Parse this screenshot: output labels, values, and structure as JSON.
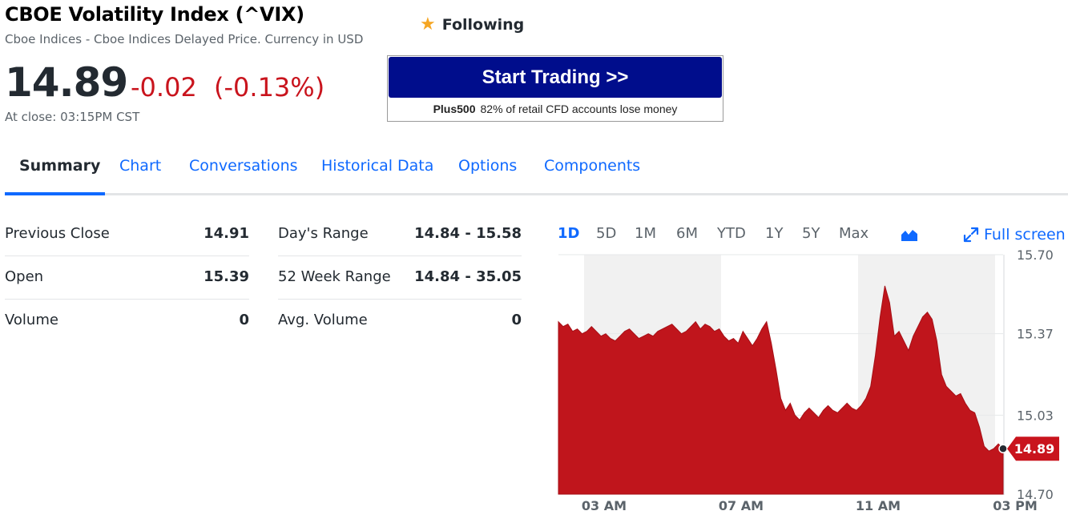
{
  "quote": {
    "title": "CBOE Volatility Index (^VIX)",
    "subtitle": "Cboe Indices - Cboe Indices Delayed Price. Currency in USD",
    "following_label": "Following",
    "price": "14.89",
    "change": "-0.02",
    "change_pct": "(-0.13%)",
    "close_time": "At close: 03:15PM CST"
  },
  "ad": {
    "button_label": "Start Trading >>",
    "brand": "Plus500",
    "disclaimer": "82% of retail CFD accounts lose money"
  },
  "tabs": [
    "Summary",
    "Chart",
    "Conversations",
    "Historical Data",
    "Options",
    "Components"
  ],
  "stats_left": [
    {
      "label": "Previous Close",
      "value": "14.91"
    },
    {
      "label": "Open",
      "value": "15.39"
    },
    {
      "label": "Volume",
      "value": "0"
    }
  ],
  "stats_right": [
    {
      "label": "Day's Range",
      "value": "14.84 - 15.58"
    },
    {
      "label": "52 Week Range",
      "value": "14.84 - 35.05"
    },
    {
      "label": "Avg. Volume",
      "value": "0"
    }
  ],
  "chart_ranges": [
    "1D",
    "5D",
    "1M",
    "6M",
    "YTD",
    "1Y",
    "5Y",
    "Max"
  ],
  "active_range": "1D",
  "fullscreen_label": "Full screen",
  "colors": {
    "accent": "#0f69ff",
    "negative": "#c9141d",
    "ad_blue": "#000d8c"
  },
  "chart_data": {
    "type": "area",
    "x_ticks": [
      "03 AM",
      "07 AM",
      "11 AM",
      "03 PM"
    ],
    "y_ticks": [
      "15.70",
      "15.37",
      "15.03",
      "14.70"
    ],
    "ylim": [
      14.7,
      15.7
    ],
    "current_value_label": "14.89",
    "current_value": 14.89,
    "values": [
      15.42,
      15.4,
      15.41,
      15.38,
      15.39,
      15.37,
      15.38,
      15.4,
      15.38,
      15.36,
      15.37,
      15.35,
      15.34,
      15.36,
      15.38,
      15.39,
      15.37,
      15.35,
      15.36,
      15.37,
      15.36,
      15.38,
      15.39,
      15.4,
      15.41,
      15.39,
      15.37,
      15.38,
      15.4,
      15.42,
      15.39,
      15.41,
      15.4,
      15.38,
      15.39,
      15.36,
      15.34,
      15.35,
      15.33,
      15.38,
      15.35,
      15.32,
      15.35,
      15.39,
      15.42,
      15.33,
      15.22,
      15.1,
      15.05,
      15.08,
      15.03,
      15.01,
      15.04,
      15.06,
      15.04,
      15.02,
      15.05,
      15.07,
      15.05,
      15.04,
      15.06,
      15.08,
      15.06,
      15.05,
      15.07,
      15.1,
      15.15,
      15.28,
      15.44,
      15.57,
      15.5,
      15.36,
      15.38,
      15.34,
      15.3,
      15.36,
      15.4,
      15.44,
      15.46,
      15.43,
      15.34,
      15.2,
      15.15,
      15.13,
      15.11,
      15.12,
      15.08,
      15.05,
      15.04,
      14.98,
      14.9,
      14.88,
      14.89,
      14.91,
      14.89
    ]
  }
}
